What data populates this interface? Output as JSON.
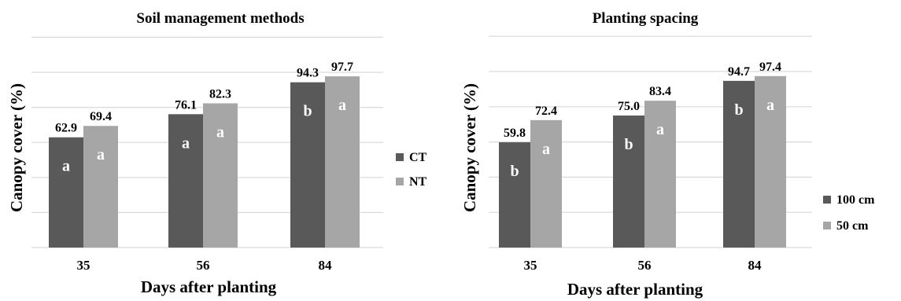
{
  "chart_data": [
    {
      "type": "bar",
      "title": "Soil management methods",
      "xlabel": "Days after planting",
      "ylabel": "Canopy cover (%)",
      "ylim": [
        0,
        120
      ],
      "grid": true,
      "legend_position": "right",
      "categories": [
        "35",
        "56",
        "84"
      ],
      "series": [
        {
          "name": "CT",
          "color": "#595959",
          "values": [
            62.9,
            76.1,
            94.3
          ],
          "labels": [
            "62.9",
            "76.1",
            "94.3"
          ],
          "letters": [
            "a",
            "a",
            "b"
          ]
        },
        {
          "name": "NT",
          "color": "#a6a6a6",
          "values": [
            69.4,
            82.3,
            97.7
          ],
          "labels": [
            "69.4",
            "82.3",
            "97.7"
          ],
          "letters": [
            "a",
            "a",
            "a"
          ]
        }
      ]
    },
    {
      "type": "bar",
      "title": "Planting spacing",
      "xlabel": "Days after planting",
      "ylabel": "Canopy cover (%)",
      "ylim": [
        0,
        120
      ],
      "grid": true,
      "legend_position": "right",
      "categories": [
        "35",
        "56",
        "84"
      ],
      "series": [
        {
          "name": "100 cm",
          "color": "#595959",
          "values": [
            59.8,
            75.0,
            94.7
          ],
          "labels": [
            "59.8",
            "75.0",
            "94.7"
          ],
          "letters": [
            "b",
            "b",
            "b"
          ]
        },
        {
          "name": "50 cm",
          "color": "#a6a6a6",
          "values": [
            72.4,
            83.4,
            97.4
          ],
          "labels": [
            "72.4",
            "83.4",
            "97.4"
          ],
          "letters": [
            "a",
            "a",
            "a"
          ]
        }
      ]
    }
  ]
}
